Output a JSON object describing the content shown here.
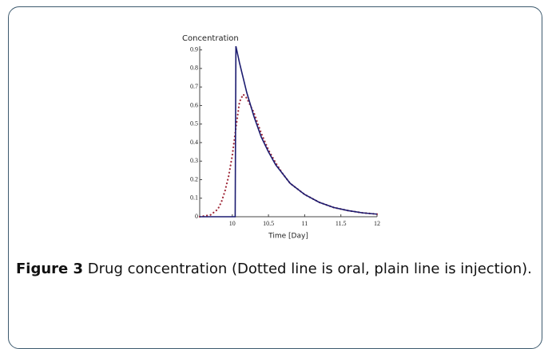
{
  "chart_data": {
    "type": "line",
    "ylabel": "Concentration",
    "xlabel": "Time [Day]",
    "xlim": [
      9.55,
      12
    ],
    "xticks": [
      10,
      10.5,
      11,
      11.5,
      12
    ],
    "ylim": [
      0,
      0.92
    ],
    "yticks": [
      0,
      0.1,
      0.2,
      0.3,
      0.4,
      0.5,
      0.6,
      0.7,
      0.8,
      0.9
    ],
    "series": [
      {
        "color": "#a02a3a",
        "style": "dotted",
        "x": [
          9.55,
          9.7,
          9.8,
          9.85,
          9.9,
          9.95,
          10.0,
          10.05,
          10.1,
          10.15,
          10.2,
          10.3,
          10.4,
          10.5,
          10.6,
          10.7,
          10.8,
          10.9,
          11,
          11.2,
          11.4,
          11.6,
          11.8,
          12
        ],
        "values": [
          0,
          0.01,
          0.04,
          0.08,
          0.14,
          0.22,
          0.33,
          0.48,
          0.62,
          0.66,
          0.64,
          0.56,
          0.45,
          0.36,
          0.29,
          0.23,
          0.18,
          0.15,
          0.12,
          0.078,
          0.05,
          0.033,
          0.021,
          0.014
        ]
      },
      {
        "color": "#1c1c70",
        "style": "solid",
        "x": [
          9.55,
          10.04,
          10.05,
          10.1,
          10.2,
          10.3,
          10.4,
          10.5,
          10.6,
          10.7,
          10.8,
          10.9,
          11,
          11.2,
          11.4,
          11.6,
          11.8,
          12
        ],
        "values": [
          0,
          0,
          0.92,
          0.83,
          0.67,
          0.54,
          0.43,
          0.35,
          0.28,
          0.23,
          0.18,
          0.15,
          0.12,
          0.078,
          0.05,
          0.033,
          0.021,
          0.014
        ]
      }
    ]
  },
  "caption": {
    "label": "Figure 3",
    "text": " Drug concentration (Dotted line is oral, plain line is injection)."
  }
}
